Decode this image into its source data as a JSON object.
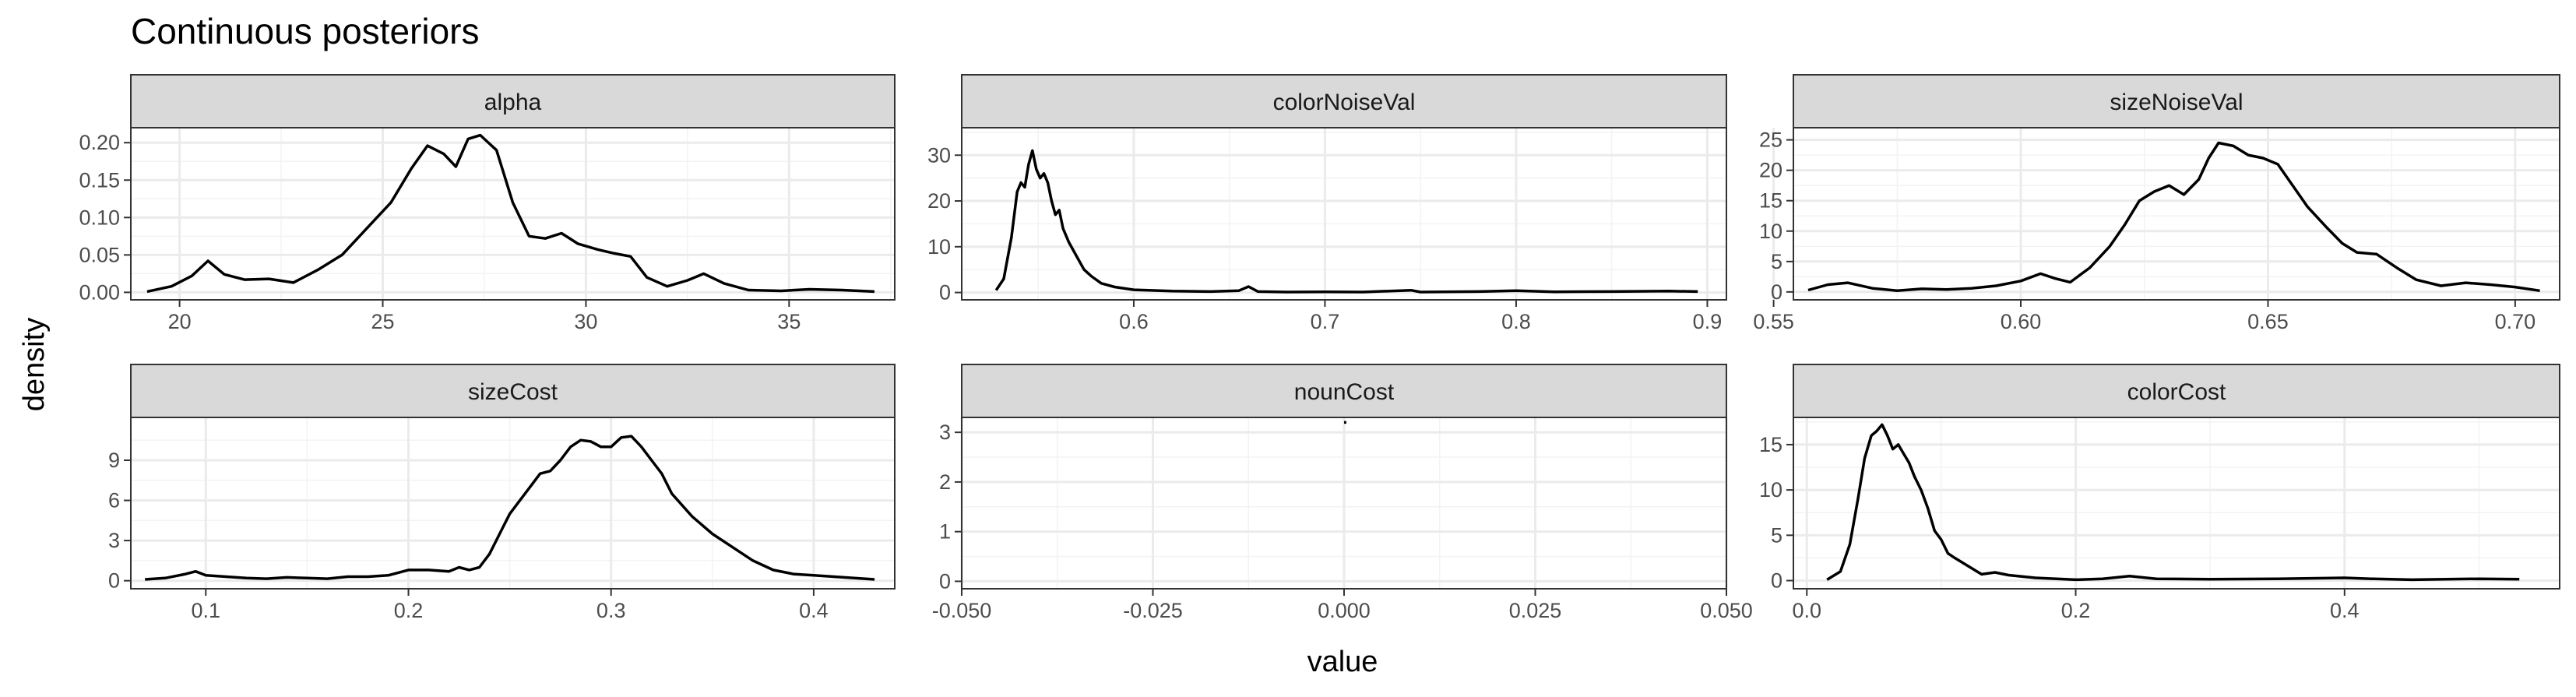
{
  "chart_data": {
    "type": "line",
    "title": "Continuous posteriors",
    "xlabel": "value",
    "ylabel": "density",
    "grid": true,
    "facets": [
      {
        "name": "alpha",
        "xlim": [
          18.8,
          37.6
        ],
        "ylim": [
          -0.01,
          0.22
        ],
        "xticks": [
          20,
          25,
          30,
          35
        ],
        "xtick_labels": [
          "20",
          "25",
          "30",
          "35"
        ],
        "yticks": [
          0,
          0.05,
          0.1,
          0.15,
          0.2
        ],
        "ytick_labels": [
          "0.00",
          "0.05",
          "0.10",
          "0.15",
          "0.20"
        ],
        "x": [
          19.2,
          19.8,
          20.3,
          20.7,
          21.1,
          21.6,
          22.2,
          22.8,
          23.4,
          24.0,
          24.6,
          25.2,
          25.7,
          26.1,
          26.5,
          26.8,
          27.1,
          27.4,
          27.8,
          28.2,
          28.6,
          29.0,
          29.4,
          29.8,
          30.3,
          30.7,
          31.1,
          31.5,
          32.0,
          32.5,
          32.9,
          33.4,
          34.0,
          34.8,
          35.5,
          36.3,
          37.1
        ],
        "values": [
          0.001,
          0.008,
          0.022,
          0.042,
          0.024,
          0.017,
          0.018,
          0.013,
          0.03,
          0.05,
          0.085,
          0.12,
          0.165,
          0.196,
          0.185,
          0.168,
          0.205,
          0.21,
          0.19,
          0.12,
          0.075,
          0.072,
          0.079,
          0.065,
          0.057,
          0.052,
          0.048,
          0.02,
          0.008,
          0.016,
          0.025,
          0.012,
          0.003,
          0.002,
          0.004,
          0.003,
          0.001
        ]
      },
      {
        "name": "colorNoiseVal",
        "xlim": [
          0.51,
          0.91
        ],
        "ylim": [
          -1.6,
          36
        ],
        "xticks": [
          0.6,
          0.7,
          0.8,
          0.9
        ],
        "xtick_labels": [
          "0.6",
          "0.7",
          "0.8",
          "0.9"
        ],
        "yticks": [
          0,
          10,
          20,
          30
        ],
        "ytick_labels": [
          "0",
          "10",
          "20",
          "30"
        ],
        "x": [
          0.528,
          0.532,
          0.536,
          0.539,
          0.541,
          0.543,
          0.545,
          0.547,
          0.549,
          0.551,
          0.553,
          0.555,
          0.557,
          0.559,
          0.561,
          0.563,
          0.566,
          0.57,
          0.574,
          0.578,
          0.583,
          0.59,
          0.6,
          0.62,
          0.64,
          0.655,
          0.66,
          0.665,
          0.68,
          0.7,
          0.72,
          0.745,
          0.75,
          0.78,
          0.8,
          0.82,
          0.85,
          0.88,
          0.895
        ],
        "values": [
          0.5,
          3,
          12,
          22,
          24,
          23,
          28,
          31,
          27,
          25,
          26,
          24,
          20,
          17,
          18,
          14,
          11,
          8,
          5,
          3.5,
          2,
          1.2,
          0.6,
          0.3,
          0.2,
          0.4,
          1.3,
          0.2,
          0.1,
          0.15,
          0.1,
          0.5,
          0.1,
          0.2,
          0.4,
          0.15,
          0.2,
          0.3,
          0.2
        ]
      },
      {
        "name": "sizeNoiseVal",
        "xlim": [
          0.554,
          0.709
        ],
        "ylim": [
          -1.3,
          27
        ],
        "xticks": [
          0.55,
          0.6,
          0.65,
          0.7
        ],
        "xtick_labels": [
          "0.55",
          "0.60",
          "0.65",
          "0.70"
        ],
        "yticks": [
          0,
          5,
          10,
          15,
          20,
          25
        ],
        "ytick_labels": [
          "0",
          "5",
          "10",
          "15",
          "20",
          "25"
        ],
        "x": [
          0.557,
          0.561,
          0.565,
          0.57,
          0.575,
          0.58,
          0.585,
          0.59,
          0.595,
          0.6,
          0.604,
          0.607,
          0.61,
          0.614,
          0.618,
          0.621,
          0.624,
          0.627,
          0.63,
          0.633,
          0.636,
          0.638,
          0.64,
          0.643,
          0.646,
          0.649,
          0.652,
          0.655,
          0.658,
          0.662,
          0.665,
          0.668,
          0.672,
          0.676,
          0.68,
          0.685,
          0.69,
          0.695,
          0.7,
          0.705
        ],
        "values": [
          0.3,
          1.2,
          1.5,
          0.6,
          0.2,
          0.5,
          0.4,
          0.6,
          1.0,
          1.8,
          3.0,
          2.2,
          1.6,
          4.0,
          7.5,
          11.0,
          15.0,
          16.5,
          17.5,
          16.0,
          18.5,
          22.0,
          24.5,
          24.0,
          22.5,
          22.0,
          21.0,
          17.5,
          14.0,
          10.5,
          8.0,
          6.5,
          6.2,
          4.0,
          2.0,
          1.0,
          1.5,
          1.2,
          0.8,
          0.2
        ]
      },
      {
        "name": "sizeCost",
        "xlim": [
          0.063,
          0.44
        ],
        "ylim": [
          -0.6,
          12.2
        ],
        "xticks": [
          0.1,
          0.2,
          0.3,
          0.4
        ],
        "xtick_labels": [
          "0.1",
          "0.2",
          "0.3",
          "0.4"
        ],
        "yticks": [
          0,
          3,
          6,
          9
        ],
        "ytick_labels": [
          "0",
          "3",
          "6",
          "9"
        ],
        "x": [
          0.07,
          0.08,
          0.09,
          0.095,
          0.1,
          0.11,
          0.12,
          0.13,
          0.14,
          0.15,
          0.16,
          0.17,
          0.18,
          0.19,
          0.2,
          0.21,
          0.22,
          0.225,
          0.23,
          0.235,
          0.24,
          0.245,
          0.25,
          0.255,
          0.26,
          0.265,
          0.27,
          0.275,
          0.28,
          0.285,
          0.29,
          0.295,
          0.3,
          0.305,
          0.31,
          0.315,
          0.32,
          0.325,
          0.33,
          0.34,
          0.35,
          0.36,
          0.37,
          0.38,
          0.39,
          0.4,
          0.41,
          0.42,
          0.43
        ],
        "values": [
          0.1,
          0.2,
          0.5,
          0.7,
          0.4,
          0.3,
          0.2,
          0.15,
          0.25,
          0.2,
          0.15,
          0.3,
          0.3,
          0.4,
          0.8,
          0.8,
          0.7,
          1.0,
          0.8,
          1.0,
          2.0,
          3.5,
          5.0,
          6.0,
          7.0,
          8.0,
          8.2,
          9.0,
          10.0,
          10.5,
          10.4,
          10.0,
          10.0,
          10.7,
          10.8,
          10.0,
          9.0,
          8.0,
          6.5,
          4.8,
          3.5,
          2.5,
          1.5,
          0.8,
          0.5,
          0.4,
          0.3,
          0.2,
          0.1
        ]
      },
      {
        "name": "nounCost",
        "xlim": [
          -0.05,
          0.05
        ],
        "ylim": [
          -0.15,
          3.3
        ],
        "xticks": [
          -0.05,
          -0.025,
          0,
          0.025,
          0.05
        ],
        "xtick_labels": [
          "-0.050",
          "-0.025",
          "0.000",
          "0.025",
          "0.050"
        ],
        "yticks": [
          0,
          1,
          2,
          3
        ],
        "ytick_labels": [
          "0",
          "1",
          "2",
          "3"
        ],
        "x": [
          0,
          0.0003
        ],
        "values": [
          3.2,
          3.2
        ]
      },
      {
        "name": "colorCost",
        "xlim": [
          -0.01,
          0.56
        ],
        "ylim": [
          -0.9,
          18
        ],
        "xticks": [
          0,
          0.2,
          0.4
        ],
        "xtick_labels": [
          "0.0",
          "0.2",
          "0.4"
        ],
        "yticks": [
          0,
          5,
          10,
          15
        ],
        "ytick_labels": [
          "0",
          "5",
          "10",
          "15"
        ],
        "x": [
          0.015,
          0.025,
          0.032,
          0.038,
          0.043,
          0.048,
          0.052,
          0.056,
          0.06,
          0.064,
          0.068,
          0.072,
          0.076,
          0.08,
          0.085,
          0.09,
          0.095,
          0.1,
          0.105,
          0.11,
          0.12,
          0.13,
          0.14,
          0.15,
          0.17,
          0.2,
          0.22,
          0.24,
          0.26,
          0.3,
          0.35,
          0.4,
          0.42,
          0.45,
          0.5,
          0.53
        ],
        "values": [
          0.1,
          1.0,
          4.0,
          9.0,
          13.5,
          16.0,
          16.5,
          17.2,
          16.0,
          14.5,
          15.0,
          14.0,
          13.0,
          11.5,
          10.0,
          8.0,
          5.5,
          4.5,
          3.0,
          2.5,
          1.6,
          0.7,
          0.9,
          0.6,
          0.3,
          0.1,
          0.2,
          0.5,
          0.2,
          0.15,
          0.2,
          0.3,
          0.2,
          0.1,
          0.2,
          0.15
        ]
      }
    ]
  }
}
